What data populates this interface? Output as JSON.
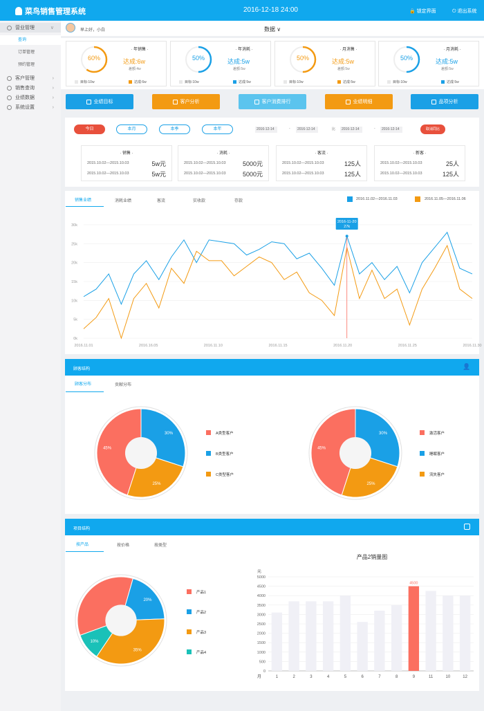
{
  "header": {
    "app_title": "菜鸟销售管理系统",
    "datetime": "2016-12-18  24:00",
    "lock_label": "锁定界面",
    "exit_label": "退出系统"
  },
  "sidebar": {
    "items": [
      {
        "label": "营业管理",
        "expanded": true,
        "sub": [
          "查询",
          "订单管理",
          "预约管理"
        ]
      },
      {
        "label": "客户管理"
      },
      {
        "label": "销售查询"
      },
      {
        "label": "业绩数据"
      },
      {
        "label": "系统设置"
      }
    ]
  },
  "userbar": {
    "greeting": "早上好，小白",
    "data_menu": "数据 ∨"
  },
  "cards": [
    {
      "title": "· 年销售 ·",
      "pct_label": "60%",
      "pct": 0.6,
      "done": "达成:6w",
      "diff": "差额:4w",
      "target": "目标:10w",
      "reach": "达成:6w",
      "color": "#f39a12"
    },
    {
      "title": "· 年消耗 ·",
      "pct_label": "50%",
      "pct": 0.5,
      "done": "达成:5w",
      "diff": "差额:5w",
      "target": "目标:10w",
      "reach": "达成:5w",
      "color": "#1aa0e6"
    },
    {
      "title": "· 月消售 ·",
      "pct_label": "50%",
      "pct": 0.5,
      "done": "达成:5w",
      "diff": "差额:5w",
      "target": "目标:10w",
      "reach": "达成:5w",
      "color": "#f39a12"
    },
    {
      "title": "· 月消耗 ·",
      "pct_label": "50%",
      "pct": 0.5,
      "done": "达成:5w",
      "diff": "差额:5w",
      "target": "目标:10w",
      "reach": "达成:5w",
      "color": "#1aa0e6"
    }
  ],
  "action_buttons": [
    {
      "label": "业绩目标",
      "color": "#1aa0e6"
    },
    {
      "label": "客户分析",
      "color": "#f39a12"
    },
    {
      "label": "客户消费排行",
      "color": "#5bc4ee"
    },
    {
      "label": "业绩明细",
      "color": "#f39a12"
    },
    {
      "label": "品项分析",
      "color": "#1aa0e6"
    }
  ],
  "filter": {
    "pills": [
      "今日",
      "本月",
      "本季",
      "本年"
    ],
    "dates": [
      "2016-12-14",
      "2016-12-14",
      "2016-12-14",
      "2016-12-14"
    ],
    "range_sep": "-",
    "compare_label": "比",
    "cancel": "取消同比"
  },
  "compare": [
    {
      "title": "· 销售 ·",
      "rows": [
        {
          "range": "2015.10.02—2015.10.03",
          "val": "5w元"
        },
        {
          "range": "2015.10.02—2015.10.03",
          "val": "5w元"
        }
      ]
    },
    {
      "title": "· 消耗 ·",
      "rows": [
        {
          "range": "2015.10.02—2015.10.03",
          "val": "5000元"
        },
        {
          "range": "2015.10.02—2015.10.03",
          "val": "5000元"
        }
      ]
    },
    {
      "title": "· 客流 ·",
      "rows": [
        {
          "range": "2015.10.02—2015.10.03",
          "val": "125人"
        },
        {
          "range": "2015.10.02—2015.10.03",
          "val": "125人"
        }
      ]
    },
    {
      "title": "· 新客 ·",
      "rows": [
        {
          "range": "2015.10.02—2015.10.03",
          "val": "25人"
        },
        {
          "range": "2015.10.02—2015.10.03",
          "val": "125人"
        }
      ]
    }
  ],
  "line_tabs": [
    "销售业绩",
    "消耗业绩",
    "客流",
    "实收款",
    "存款"
  ],
  "line_legend": [
    {
      "label": "2016.11.02—2016.11.03",
      "color": "#1aa0e6"
    },
    {
      "label": "2016.11.05—2016.11.06",
      "color": "#f39a12"
    }
  ],
  "tooltip": {
    "date": "2016-11-20",
    "value": "27k"
  },
  "chart_data": [
    {
      "type": "line",
      "x_ticks": [
        "2016.11.01",
        "2016.16.05",
        "2016.11.10",
        "2016.11.15",
        "2016.11.20",
        "2016.11.25",
        "2016.11.30"
      ],
      "y_ticks": [
        "0k",
        "5k",
        "10k",
        "15k",
        "20k",
        "25k",
        "30k"
      ],
      "ylim": [
        0,
        30
      ],
      "series": [
        {
          "name": "2016.11.02—2016.11.03",
          "color": "#1aa0e6",
          "values": [
            11,
            13,
            17,
            9,
            17,
            20.5,
            15.5,
            21.5,
            26,
            20,
            26,
            25.5,
            25,
            22,
            23.5,
            25.5,
            25,
            21,
            22.5,
            18.5,
            14,
            27,
            17,
            20,
            15.5,
            19,
            12,
            20,
            24,
            28,
            18.5,
            17
          ]
        },
        {
          "name": "2016.11.05—2016.11.06",
          "color": "#f39a12",
          "values": [
            2.5,
            5.5,
            10.5,
            0,
            10.5,
            14.5,
            8,
            18.5,
            14.5,
            23,
            20.5,
            20.5,
            16.5,
            19,
            21.5,
            20,
            15.5,
            17.5,
            12,
            10,
            6,
            24,
            10.5,
            18,
            10.5,
            13,
            3.5,
            13,
            18.5,
            24.5,
            13,
            10.5
          ]
        }
      ]
    },
    {
      "type": "pie",
      "labels": [
        "A类型客户",
        "B类型客户",
        "C类型客户"
      ],
      "values": [
        45,
        30,
        25
      ],
      "colors": [
        "#fb6f60",
        "#1aa0e6",
        "#f39a12"
      ]
    },
    {
      "type": "pie",
      "labels": [
        "激活客户",
        "睡眠客户",
        "流失客户"
      ],
      "values": [
        45,
        30,
        25
      ],
      "colors": [
        "#fb6f60",
        "#1aa0e6",
        "#f39a12"
      ]
    },
    {
      "type": "pie",
      "labels": [
        "产品1",
        "产品2",
        "产品3",
        "产品4"
      ],
      "values": [
        35,
        20,
        35,
        10
      ],
      "colors": [
        "#fb6f60",
        "#1aa0e6",
        "#f39a12",
        "#1ac1b8"
      ]
    },
    {
      "type": "bar",
      "title": "产品2销量图",
      "ylabel": "元",
      "xlabel": "月",
      "categories": [
        "1",
        "2",
        "3",
        "4",
        "5",
        "6",
        "7",
        "8",
        "9",
        "11",
        "10",
        "12"
      ],
      "values": [
        3100,
        3700,
        3700,
        3700,
        4000,
        2600,
        3200,
        3500,
        4500,
        4250,
        4000,
        4000
      ],
      "highlight_index": 8,
      "highlight_label": "4500",
      "ylim": [
        0,
        5000
      ],
      "y_ticks": [
        "0",
        "500",
        "1000",
        "1500",
        "2000",
        "2500",
        "3000",
        "3500",
        "4000",
        "4500",
        "5000"
      ]
    }
  ],
  "customer_section": {
    "title": "顾客结构",
    "tabs": [
      "顾客分布",
      "贡献分布"
    ],
    "pie_labels": [
      "30%",
      "25%",
      "45%"
    ]
  },
  "project_section": {
    "title": "项目结构",
    "tabs": [
      "按产品",
      "按价格",
      "按类型"
    ],
    "pie_labels": [
      "20%",
      "35%",
      "10%"
    ]
  }
}
